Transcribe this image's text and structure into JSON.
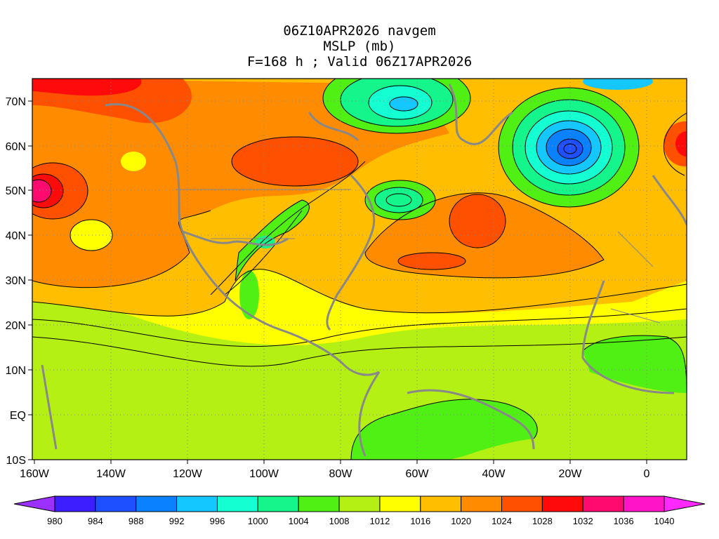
{
  "titles": {
    "line1": "06Z10APR2026 navgem",
    "line2": "MSLP (mb)",
    "line3": "F=168 h ; Valid 06Z17APR2026"
  },
  "axes": {
    "lat_labels": [
      "70N",
      "60N",
      "50N",
      "40N",
      "30N",
      "20N",
      "10N",
      "EQ",
      "10S"
    ],
    "lon_labels": [
      "160W",
      "140W",
      "120W",
      "100W",
      "80W",
      "60W",
      "40W",
      "20W",
      "0"
    ]
  },
  "colorbar": {
    "levels": [
      "980",
      "984",
      "988",
      "992",
      "996",
      "1000",
      "1004",
      "1008",
      "1012",
      "1016",
      "1020",
      "1024",
      "1028",
      "1032",
      "1036",
      "1040"
    ],
    "colors": [
      "#9b30ff",
      "#3c1eff",
      "#1e50ff",
      "#0a82ff",
      "#14c8ff",
      "#14ffd2",
      "#14f58c",
      "#50f014",
      "#b4f014",
      "#ffff00",
      "#ffbe00",
      "#ff8c00",
      "#ff5000",
      "#ff0a0a",
      "#ff0a6e",
      "#ff14c8",
      "#ff28ff"
    ]
  },
  "field": {
    "background": "#b4f014",
    "centers": [
      {
        "name": "low-iceland",
        "type": "low",
        "lon": -21,
        "lat": 59,
        "value": 985
      },
      {
        "name": "low-labrador",
        "type": "low",
        "lon": -64,
        "lat": 69,
        "value": 990
      },
      {
        "name": "low-great-lakes",
        "type": "low",
        "lon": -66,
        "lat": 48,
        "value": 1000
      },
      {
        "name": "low-central-us",
        "type": "low",
        "lon": -95,
        "lat": 39,
        "value": 1002
      },
      {
        "name": "high-north-pacific",
        "type": "high",
        "lon": -158,
        "lat": 50,
        "value": 1036
      },
      {
        "name": "high-azores",
        "type": "high",
        "lon": -45,
        "lat": 38,
        "value": 1026
      },
      {
        "name": "high-alaska",
        "type": "high",
        "lon": -140,
        "lat": 70,
        "value": 1030
      },
      {
        "name": "high-europe",
        "type": "high",
        "lon": 8,
        "lat": 60,
        "value": 1030
      }
    ]
  }
}
